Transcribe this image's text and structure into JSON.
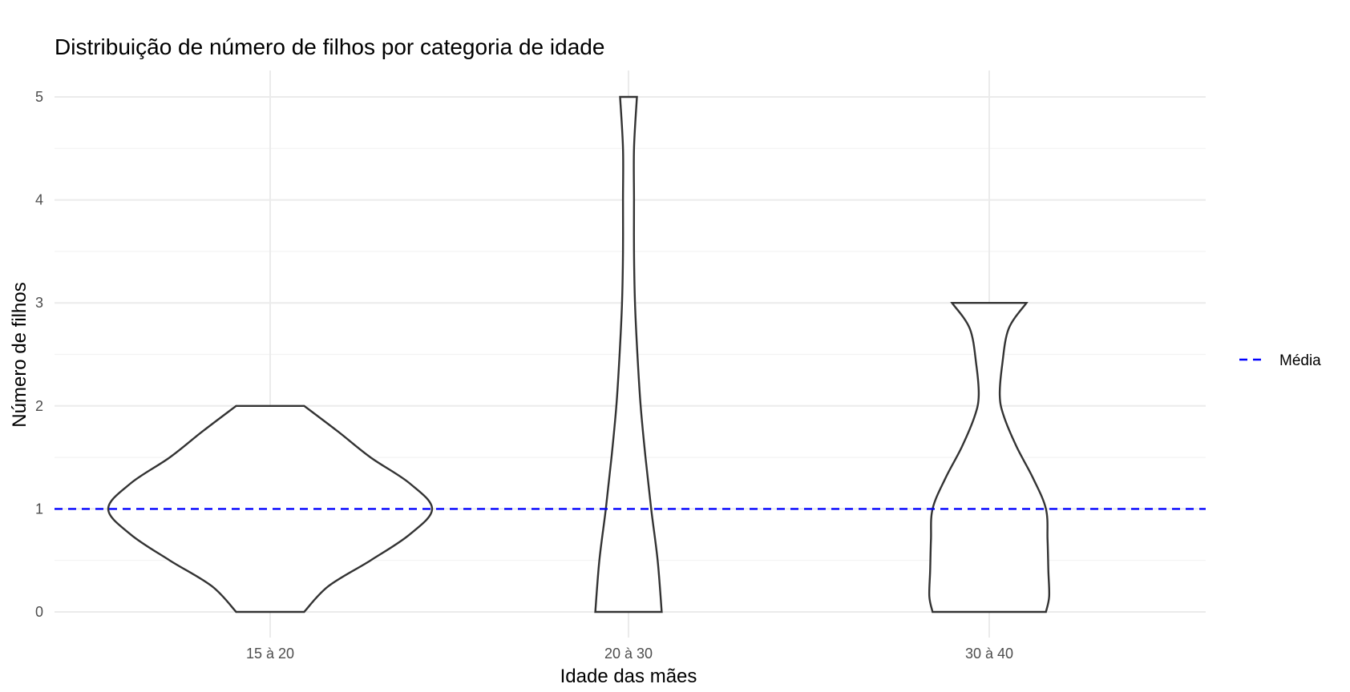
{
  "chart_data": {
    "type": "violin",
    "title": "Distribuição de número de filhos por categoria de idade",
    "xlabel": "Idade das mães",
    "ylabel": "Número de filhos",
    "categories": [
      "15 à 20",
      "20 à 30",
      "30 à 40"
    ],
    "ylim": [
      -0.2,
      5.25
    ],
    "yticks": [
      0,
      1,
      2,
      3,
      4,
      5
    ],
    "grid": true,
    "violins": [
      {
        "category": "15 à 20",
        "min": 0,
        "max": 2,
        "profile": [
          [
            0,
            0.21
          ],
          [
            0.25,
            0.36
          ],
          [
            0.5,
            0.62
          ],
          [
            0.75,
            0.86
          ],
          [
            1.0,
            1.0
          ],
          [
            1.25,
            0.86
          ],
          [
            1.5,
            0.62
          ],
          [
            1.75,
            0.42
          ],
          [
            2.0,
            0.21
          ]
        ]
      },
      {
        "category": "20 à 30",
        "min": 0,
        "max": 5,
        "profile": [
          [
            0,
            0.205
          ],
          [
            0.5,
            0.18
          ],
          [
            1.0,
            0.14
          ],
          [
            1.5,
            0.105
          ],
          [
            2.0,
            0.075
          ],
          [
            2.5,
            0.055
          ],
          [
            3.0,
            0.04
          ],
          [
            3.5,
            0.034
          ],
          [
            4.0,
            0.034
          ],
          [
            4.5,
            0.034
          ],
          [
            5.0,
            0.052
          ]
        ]
      },
      {
        "category": "30 à 40",
        "min": 0,
        "max": 3,
        "profile": [
          [
            0,
            0.35
          ],
          [
            0.15,
            0.37
          ],
          [
            0.4,
            0.365
          ],
          [
            0.7,
            0.36
          ],
          [
            1.0,
            0.35
          ],
          [
            1.3,
            0.27
          ],
          [
            1.6,
            0.17
          ],
          [
            1.9,
            0.09
          ],
          [
            2.1,
            0.065
          ],
          [
            2.4,
            0.08
          ],
          [
            2.75,
            0.12
          ],
          [
            3.0,
            0.23
          ]
        ]
      }
    ],
    "reference_line": {
      "name": "Média",
      "y": 1,
      "color": "#0000ff",
      "style": "dashed"
    },
    "legend": {
      "position": "right",
      "entries": [
        "Média"
      ]
    }
  }
}
